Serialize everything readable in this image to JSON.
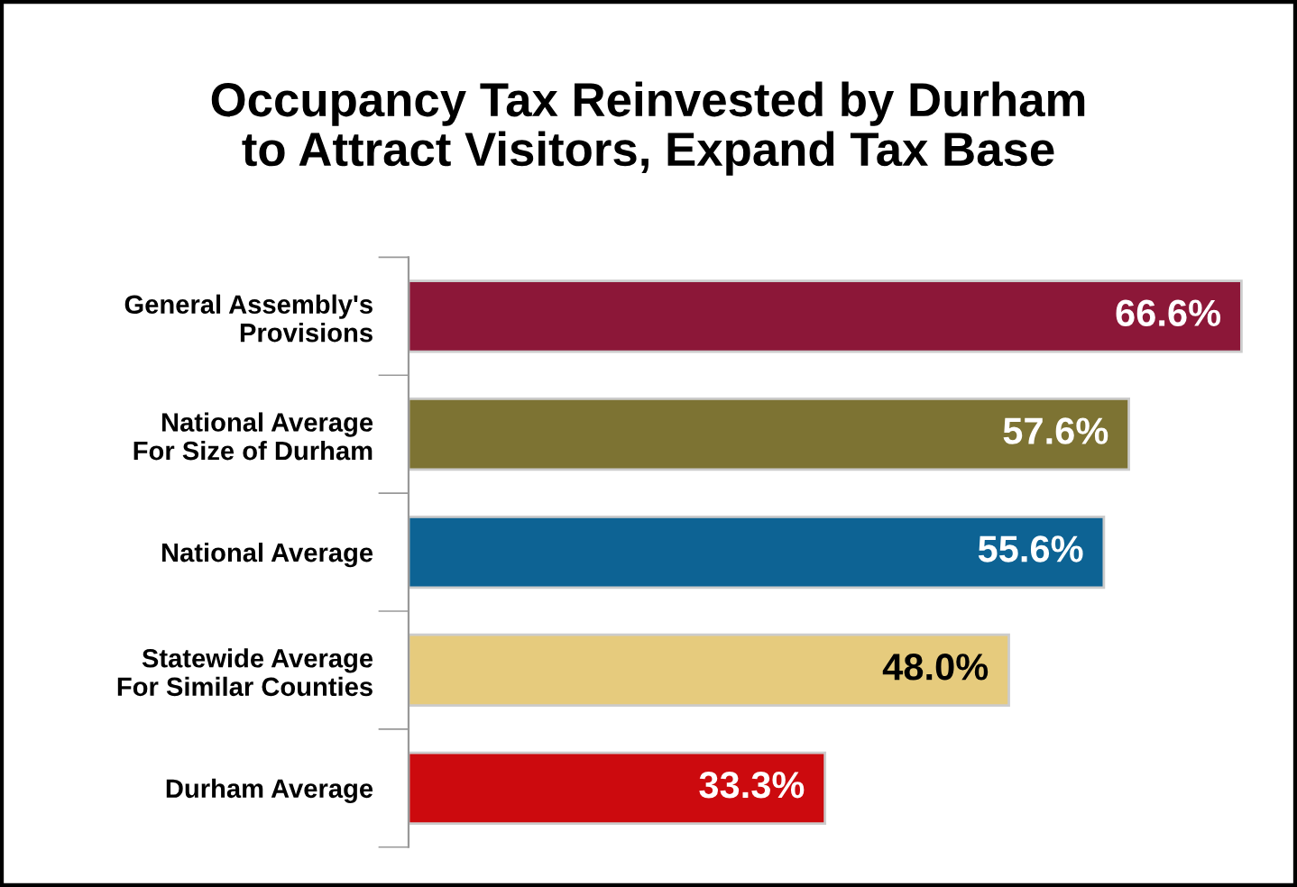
{
  "chart_data": {
    "type": "bar",
    "orientation": "horizontal",
    "title": "Occupancy Tax Reinvested by Durham\nto Attract Visitors, Expand Tax Base",
    "categories": [
      "General Assembly's\nProvisions",
      "National Average\nFor Size of Durham",
      "National Average",
      "Statewide Average\nFor Similar Counties",
      "Durham Average"
    ],
    "values": [
      66.6,
      57.6,
      55.6,
      48.0,
      33.3
    ],
    "colors": [
      "#8c1738",
      "#7d7333",
      "#0d6394",
      "#e6cb7d",
      "#cc0a0e"
    ],
    "value_labels": [
      "66.6%",
      "57.6%",
      "55.6%",
      "48.0%",
      "33.3%"
    ],
    "tick_labels": "y",
    "grid": false
  }
}
